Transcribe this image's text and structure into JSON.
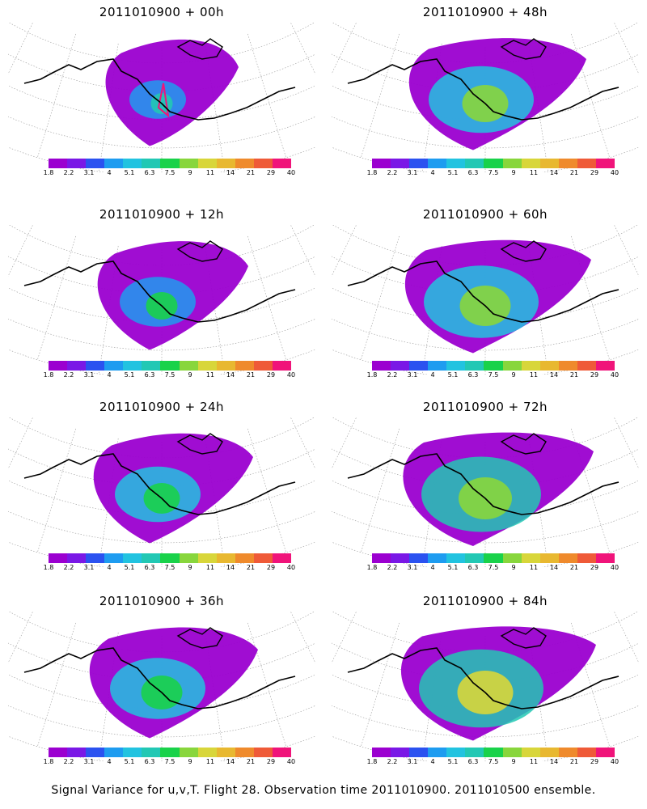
{
  "panels": [
    {
      "title": "2011010900 + 00h",
      "spread": 0.25,
      "hue": 0.0
    },
    {
      "title": "2011010900 + 48h",
      "spread": 0.75,
      "hue": 0.55
    },
    {
      "title": "2011010900 + 12h",
      "spread": 0.45,
      "hue": 0.2
    },
    {
      "title": "2011010900 + 60h",
      "spread": 0.85,
      "hue": 0.65
    },
    {
      "title": "2011010900 + 24h",
      "spread": 0.55,
      "hue": 0.3
    },
    {
      "title": "2011010900 + 72h",
      "spread": 0.9,
      "hue": 0.8
    },
    {
      "title": "2011010900 + 36h",
      "spread": 0.65,
      "hue": 0.45
    },
    {
      "title": "2011010900 + 84h",
      "spread": 0.95,
      "hue": 0.9
    }
  ],
  "colorbar": {
    "labels": [
      "1.8",
      "2.2",
      "3.1",
      "4",
      "5.1",
      "6.3",
      "7.5",
      "9",
      "11",
      "14",
      "21",
      "29",
      "40"
    ],
    "colors": [
      "#9b00d0",
      "#7a18e6",
      "#2b52f0",
      "#1e9cf0",
      "#22c3e0",
      "#22c8b4",
      "#19d24a",
      "#88d63c",
      "#d8d63a",
      "#e8b830",
      "#ef8a2c",
      "#ef5a38",
      "#f0147a"
    ]
  },
  "footer": "Signal Variance for u,v,T. Flight 28. Observation time 2011010900. 2011010500 ensemble."
}
